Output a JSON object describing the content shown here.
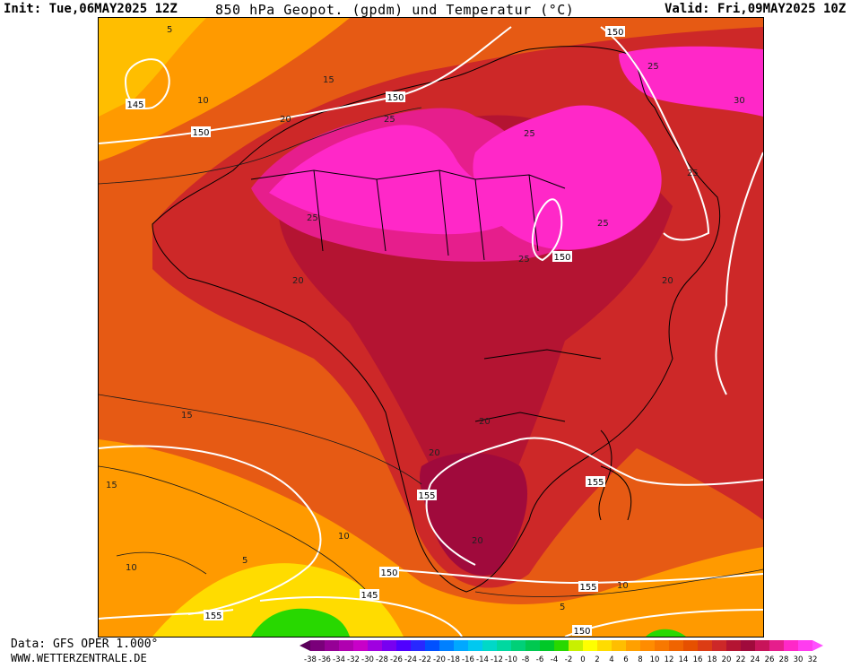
{
  "header": {
    "init": "Init: Tue,06MAY2025 12Z",
    "title": "850 hPa Geopot. (gpdm) und Temperatur (°C)",
    "valid": "Valid: Fri,09MAY2025 10Z"
  },
  "footer": {
    "source": "Data: GFS OPER 1.000°",
    "website": "WWW.WETTERZENTRALE.DE"
  },
  "legend": {
    "ticks": [
      "-38",
      "-36",
      "-34",
      "-32",
      "-30",
      "-28",
      "-26",
      "-24",
      "-22",
      "-20",
      "-18",
      "-16",
      "-14",
      "-12",
      "-10",
      "-8",
      "-6",
      "-4",
      "-2",
      "0",
      "2",
      "4",
      "6",
      "8",
      "10",
      "12",
      "14",
      "16",
      "18",
      "20",
      "22",
      "24",
      "26",
      "28",
      "30",
      "32"
    ],
    "colors": [
      "#5a005a",
      "#7a007a",
      "#960096",
      "#b000b0",
      "#c800c8",
      "#a000e0",
      "#7800f0",
      "#5000ff",
      "#2828ff",
      "#0050ff",
      "#0080ff",
      "#00a8ff",
      "#00c8f0",
      "#00d8c8",
      "#00d8a0",
      "#00d078",
      "#00c850",
      "#00c828",
      "#28d800",
      "#c8f000",
      "#ffff00",
      "#ffdc00",
      "#ffbe00",
      "#ffa000",
      "#ff8c00",
      "#f87800",
      "#f06400",
      "#e65000",
      "#dc3c14",
      "#cd2828",
      "#b41432",
      "#a00a3c",
      "#c8145a",
      "#e61e8c",
      "#ff28c8",
      "#ff3cf0",
      "#ff50ff"
    ]
  },
  "map": {
    "geopotential_labels": [
      "145",
      "150",
      "150",
      "150",
      "150",
      "150",
      "150",
      "155",
      "155",
      "155",
      "145",
      "155",
      "150"
    ],
    "temperature_labels": [
      "5",
      "15",
      "10",
      "20",
      "25",
      "25",
      "25",
      "30",
      "25",
      "25",
      "25",
      "25",
      "20",
      "20",
      "20",
      "20",
      "15",
      "15",
      "10",
      "10",
      "5",
      "20",
      "10",
      "5"
    ]
  }
}
